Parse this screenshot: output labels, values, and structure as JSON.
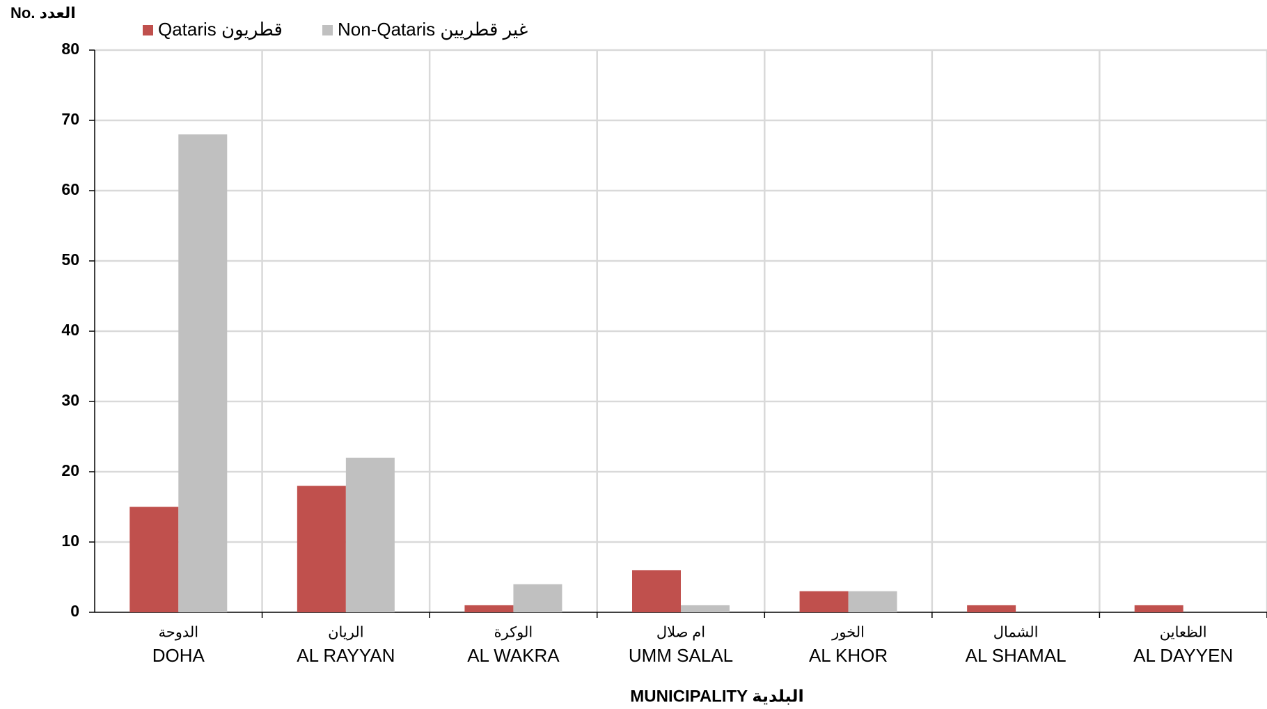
{
  "chart_data": {
    "type": "bar",
    "y_label": "No. العدد",
    "x_label": "MUNICIPALITY البلدية",
    "categories": [
      "DOHA",
      "AL RAYYAN",
      "AL WAKRA",
      "UMM SALAL",
      "AL KHOR",
      "AL SHAMAL",
      "AL DAYYEN"
    ],
    "categories_ar": [
      "الدوحة",
      "الريان",
      "الوكرة",
      "ام صلال",
      "الخور",
      "الشمال",
      "الظعاين"
    ],
    "series": [
      {
        "name": "Qataris قطريون",
        "color": "#c0504d",
        "values": [
          15,
          18,
          1,
          6,
          3,
          1,
          1
        ]
      },
      {
        "name": "Non-Qataris  غير قطريين",
        "color": "#c0c0c0",
        "values": [
          68,
          22,
          4,
          1,
          3,
          0,
          0
        ]
      }
    ],
    "ylim": [
      0,
      80
    ],
    "yticks": [
      0,
      10,
      20,
      30,
      40,
      50,
      60,
      70,
      80
    ],
    "grid": true
  }
}
